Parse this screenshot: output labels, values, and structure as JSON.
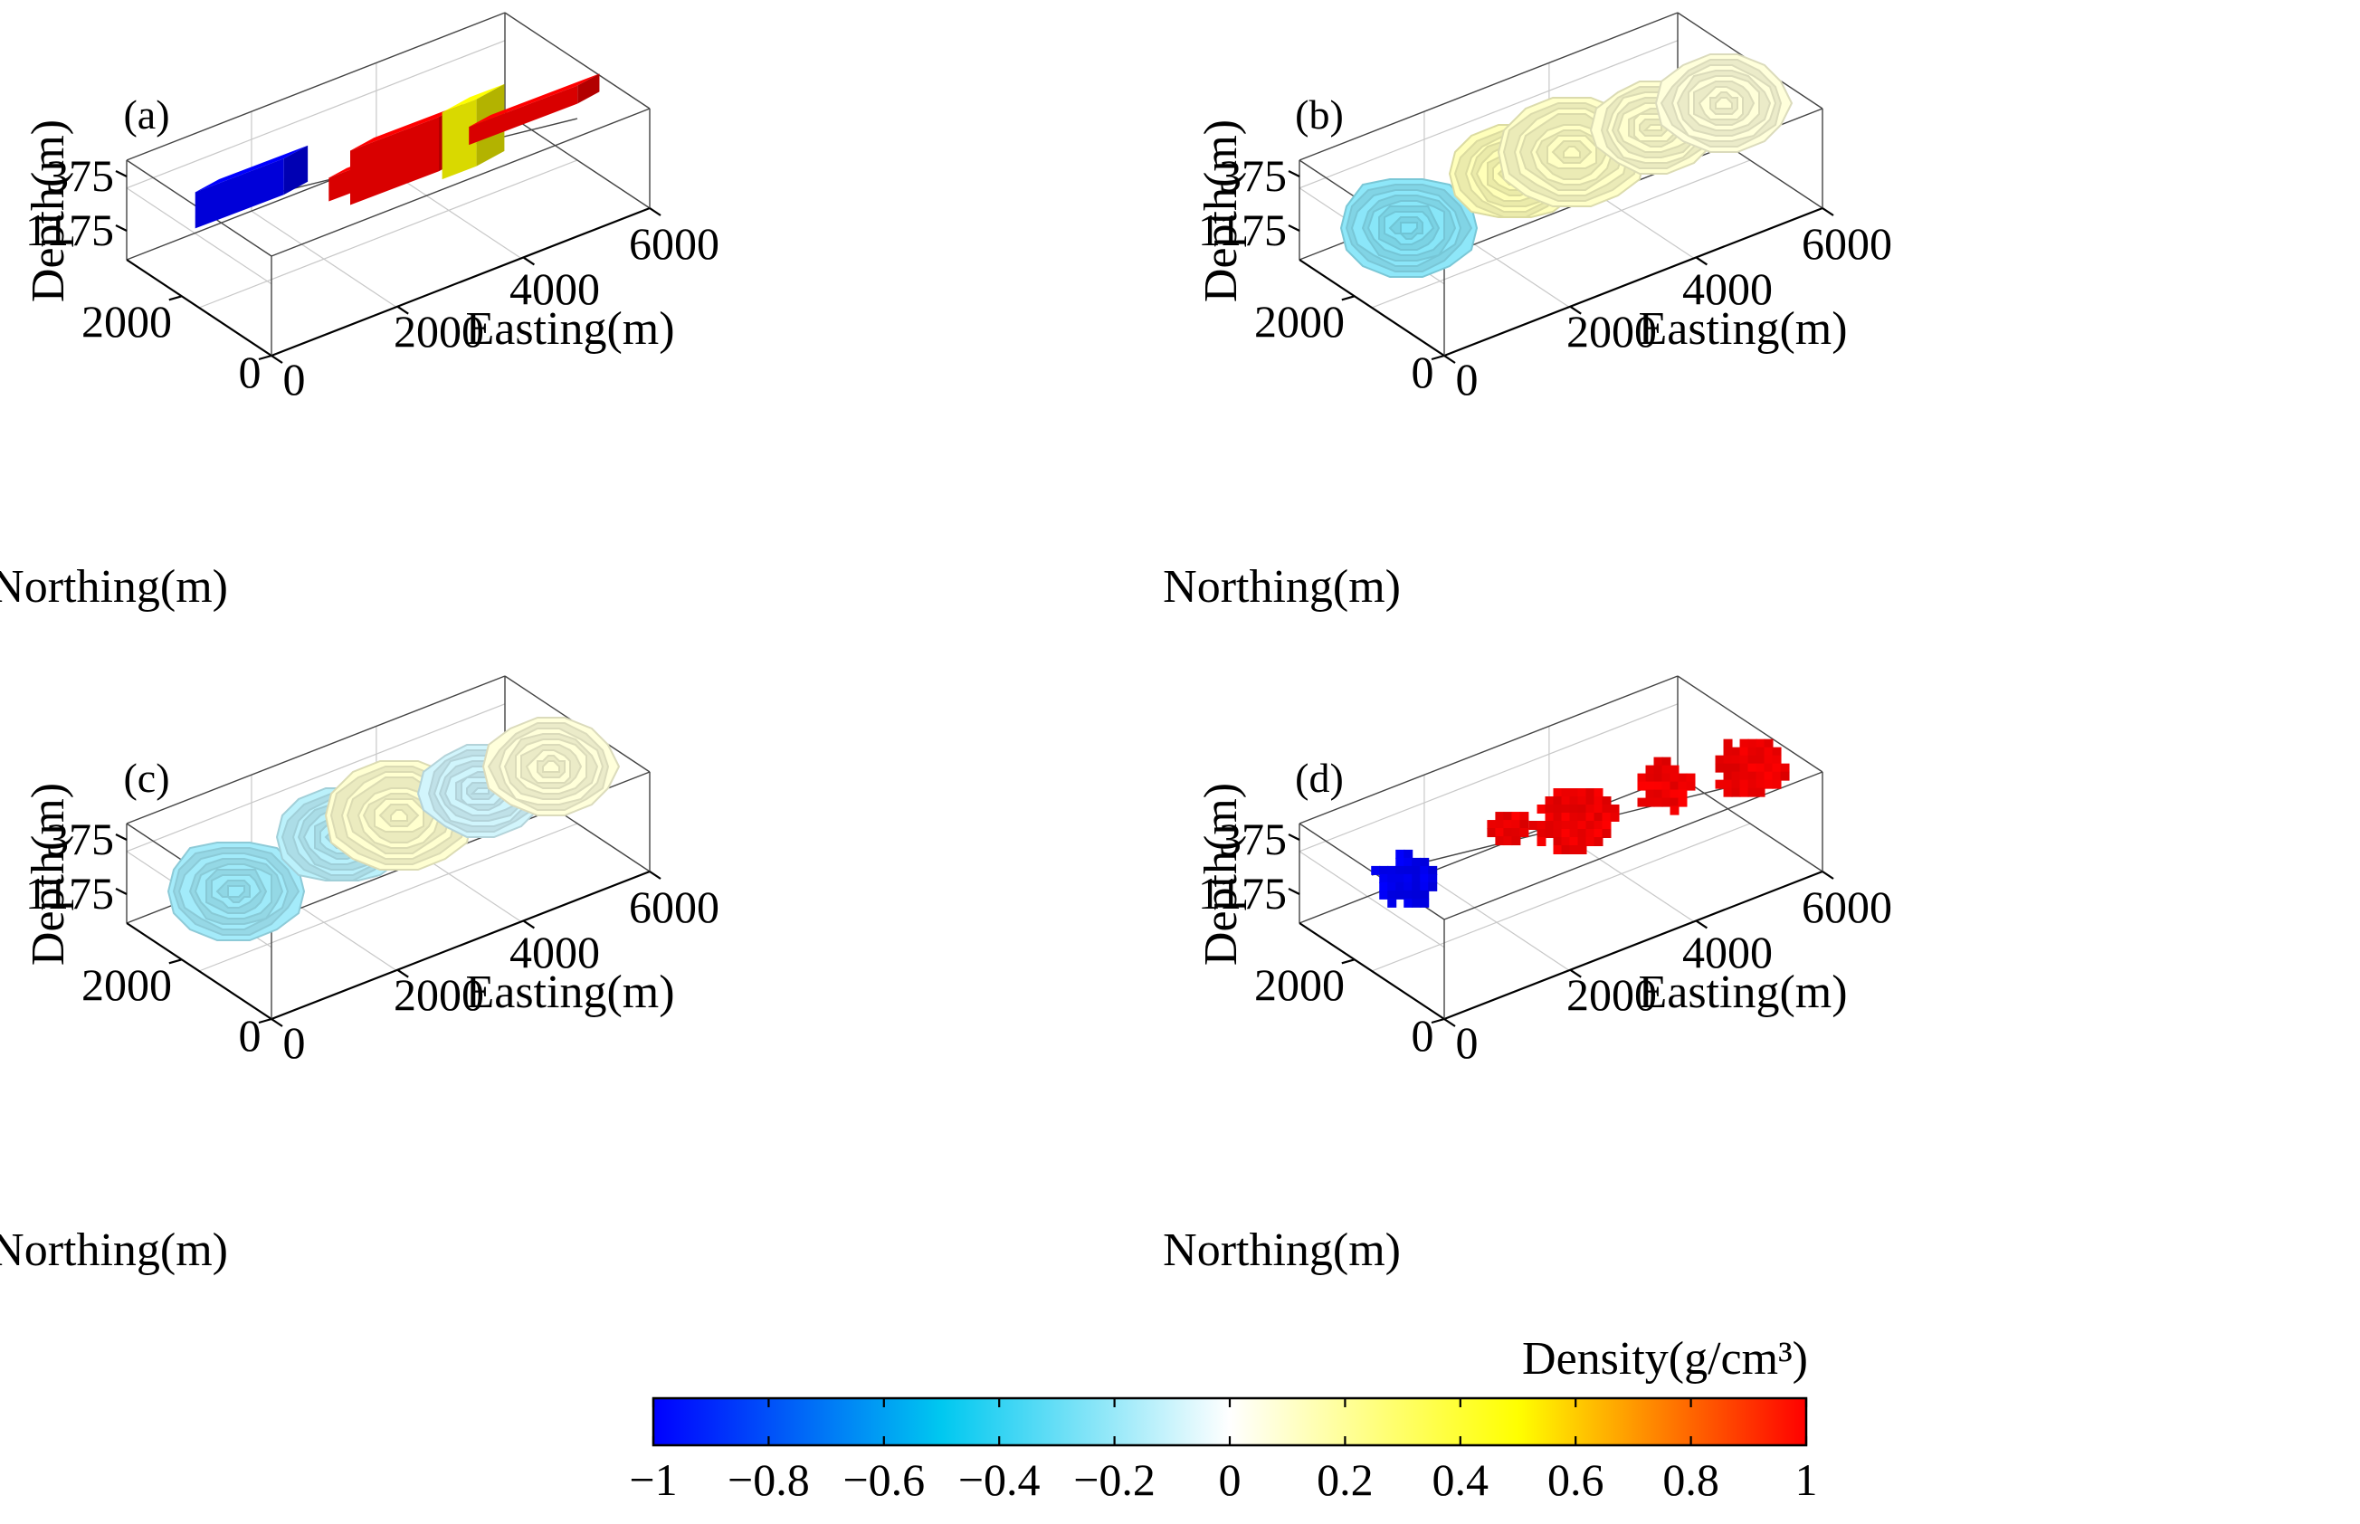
{
  "chart_data": [
    {
      "type": "3d-voxel",
      "panel_label": "(a)",
      "xlabel": "Easting(m)",
      "ylabel": "Northing(m)",
      "zlabel": "Depth(m)",
      "x_ticks": [
        "0",
        "2000",
        "4000",
        "6000"
      ],
      "y_ticks": [
        "0",
        "2000"
      ],
      "z_ticks": [
        "375",
        "1175"
      ],
      "bodies": [
        {
          "easting": 800,
          "density": -1.0,
          "kind": "block"
        },
        {
          "easting": 2100,
          "density": 1.0,
          "kind": "block"
        },
        {
          "easting": 3000,
          "density": 1.0,
          "kind": "block"
        },
        {
          "easting": 4200,
          "density": 0.5,
          "kind": "block"
        },
        {
          "easting": 5300,
          "density": 1.0,
          "kind": "block"
        }
      ]
    },
    {
      "type": "3d-voxel",
      "panel_label": "(b)",
      "xlabel": "Easting(m)",
      "ylabel": "Northing(m)",
      "zlabel": "Depth(m)",
      "x_ticks": [
        "0",
        "2000",
        "4000",
        "6000"
      ],
      "y_ticks": [
        "0",
        "2000"
      ],
      "z_ticks": [
        "375",
        "1175"
      ],
      "bodies": [
        {
          "easting": 800,
          "density": -0.25,
          "kind": "smooth"
        },
        {
          "easting": 2100,
          "density": 0.15,
          "kind": "smooth"
        },
        {
          "easting": 3000,
          "density": 0.12,
          "kind": "smooth"
        },
        {
          "easting": 4200,
          "density": 0.1,
          "kind": "smooth"
        },
        {
          "easting": 5300,
          "density": 0.08,
          "kind": "smooth"
        }
      ]
    },
    {
      "type": "3d-voxel",
      "panel_label": "(c)",
      "xlabel": "Easting(m)",
      "ylabel": "Northing(m)",
      "zlabel": "Depth(m)",
      "x_ticks": [
        "0",
        "2000",
        "4000",
        "6000"
      ],
      "y_ticks": [
        "0",
        "2000"
      ],
      "z_ticks": [
        "375",
        "1175"
      ],
      "bodies": [
        {
          "easting": 800,
          "density": -0.2,
          "kind": "smooth"
        },
        {
          "easting": 2100,
          "density": -0.15,
          "kind": "smooth"
        },
        {
          "easting": 3000,
          "density": 0.1,
          "kind": "smooth"
        },
        {
          "easting": 4200,
          "density": -0.1,
          "kind": "smooth"
        },
        {
          "easting": 5300,
          "density": 0.08,
          "kind": "smooth"
        }
      ]
    },
    {
      "type": "3d-voxel",
      "panel_label": "(d)",
      "xlabel": "Easting(m)",
      "ylabel": "Northing(m)",
      "zlabel": "Depth(m)",
      "x_ticks": [
        "0",
        "2000",
        "4000",
        "6000"
      ],
      "y_ticks": [
        "0",
        "2000"
      ],
      "z_ticks": [
        "375",
        "1175"
      ],
      "bodies": [
        {
          "easting": 800,
          "density": -1.0,
          "kind": "irregular"
        },
        {
          "easting": 2100,
          "density": 1.0,
          "kind": "irregular"
        },
        {
          "easting": 3000,
          "density": 1.0,
          "kind": "irregular"
        },
        {
          "easting": 4200,
          "density": 1.0,
          "kind": "irregular"
        },
        {
          "easting": 5300,
          "density": 1.0,
          "kind": "irregular"
        }
      ]
    }
  ],
  "colorbar": {
    "title": "Density(g/cm³)",
    "min": -1,
    "max": 1,
    "ticks": [
      "−1",
      "−0.8",
      "−0.6",
      "−0.4",
      "−0.2",
      "0",
      "0.2",
      "0.4",
      "0.6",
      "0.8",
      "1"
    ],
    "stops": [
      "#0000ff",
      "#00c8ff",
      "#ffffff",
      "#ffff00",
      "#ff0000"
    ]
  }
}
